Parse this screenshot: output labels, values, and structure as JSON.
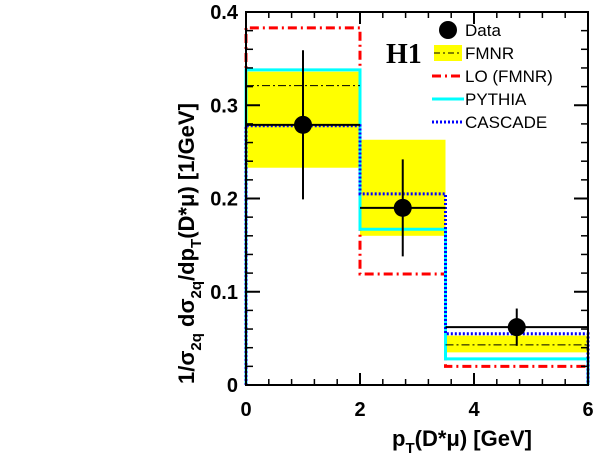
{
  "chart_data": {
    "type": "histogram",
    "experiment_label": "H1",
    "xlabel": "p_T(D*μ) [GeV]",
    "ylabel": "1/σ_2q dσ_2q/dp_T(D*μ) [1/GeV]",
    "xlim": [
      0,
      6
    ],
    "ylim": [
      0,
      0.4
    ],
    "x_ticks": [
      0,
      2,
      4,
      6
    ],
    "x_tick_labels": [
      "0",
      "2",
      "4",
      "6"
    ],
    "y_ticks": [
      0,
      0.1,
      0.2,
      0.3,
      0.4
    ],
    "y_tick_labels": [
      "0",
      "0.1",
      "0.2",
      "0.3",
      "0.4"
    ],
    "bin_edges": [
      0,
      2,
      3.5,
      6
    ],
    "legend_position": "top-right",
    "data": {
      "name": "Data",
      "x": [
        1.0,
        2.75,
        4.75
      ],
      "y": [
        0.279,
        0.19,
        0.062
      ],
      "y_err": [
        0.08,
        0.052,
        0.02
      ],
      "x_err_low": [
        1.0,
        0.75,
        1.25
      ],
      "x_err_high": [
        1.0,
        0.75,
        1.25
      ],
      "color": "#000000"
    },
    "fmnr": {
      "name": "FMNR",
      "central": [
        0.321,
        0.19,
        0.043
      ],
      "band_low": [
        0.233,
        0.16,
        0.035
      ],
      "band_high": [
        0.336,
        0.263,
        0.053
      ],
      "band_color": "#ffff00",
      "line_color": "#000000"
    },
    "series": [
      {
        "name": "LO (FMNR)",
        "values": [
          0.383,
          0.119,
          0.02
        ],
        "color": "#ff0000",
        "style": "dash-dot"
      },
      {
        "name": "PYTHIA",
        "values": [
          0.338,
          0.167,
          0.028
        ],
        "color": "#00ffff",
        "style": "solid"
      },
      {
        "name": "CASCADE",
        "values": [
          0.278,
          0.205,
          0.055
        ],
        "color": "#0000ff",
        "style": "dotted"
      }
    ]
  }
}
